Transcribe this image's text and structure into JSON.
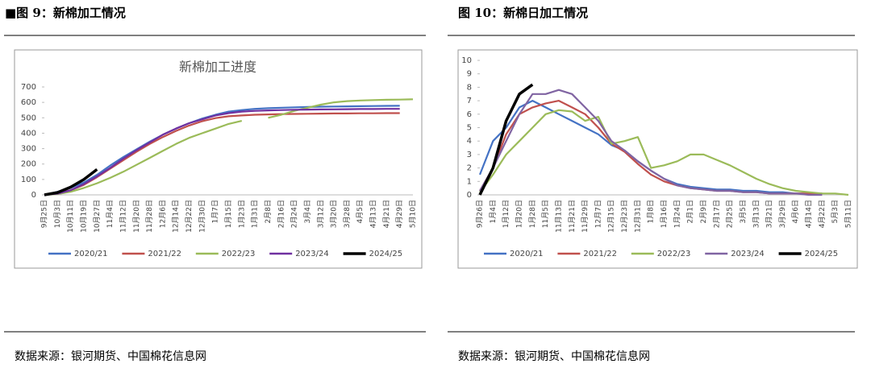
{
  "header_left": "■图 9：新棉加工情况",
  "header_right": "图 10：新棉日加工情况",
  "source_left": "数据来源：银河期货、中国棉花信息网",
  "source_right": "数据来源：银河期货、中国棉花信息网",
  "chart_data": [
    {
      "type": "line",
      "title": "新棉加工进度",
      "categories": [
        "9月25日",
        "10月3日",
        "10月11日",
        "10月19日",
        "10月27日",
        "11月4日",
        "11月12日",
        "11月20日",
        "11月28日",
        "12月6日",
        "12月14日",
        "12月22日",
        "12月30日",
        "1月7日",
        "1月15日",
        "1月23日",
        "1月31日",
        "2月8日",
        "2月16日",
        "2月24日",
        "3月4日",
        "3月12日",
        "3月20日",
        "3月28日",
        "4月5日",
        "4月13日",
        "4月21日",
        "4月29日",
        "5月10日"
      ],
      "ylim": [
        0,
        700
      ],
      "yticks": [
        0,
        100,
        200,
        300,
        400,
        500,
        600,
        700
      ],
      "series": [
        {
          "name": "2020/21",
          "color": "#4472c4",
          "values": [
            0,
            20,
            45,
            80,
            130,
            190,
            245,
            295,
            345,
            390,
            430,
            465,
            495,
            520,
            540,
            550,
            558,
            562,
            565,
            568,
            570,
            572,
            573,
            574,
            575,
            576,
            577,
            578,
            null
          ]
        },
        {
          "name": "2021/22",
          "color": "#c0504d",
          "values": [
            0,
            10,
            30,
            65,
            115,
            170,
            225,
            280,
            330,
            375,
            415,
            450,
            478,
            498,
            510,
            515,
            520,
            522,
            524,
            525,
            526,
            527,
            528,
            528,
            529,
            529,
            530,
            530,
            null
          ]
        },
        {
          "name": "2022/23",
          "color": "#9bbb59",
          "values": [
            0,
            5,
            20,
            45,
            75,
            110,
            150,
            195,
            240,
            285,
            330,
            370,
            400,
            430,
            460,
            480,
            null,
            500,
            520,
            545,
            565,
            585,
            600,
            608,
            612,
            615,
            617,
            618,
            620
          ]
        },
        {
          "name": "2023/24",
          "color": "#7030a0",
          "values": [
            0,
            8,
            30,
            70,
            120,
            175,
            235,
            290,
            340,
            390,
            430,
            465,
            490,
            515,
            530,
            540,
            545,
            548,
            550,
            552,
            553,
            554,
            555,
            556,
            557,
            557,
            558,
            558,
            null
          ]
        },
        {
          "name": "2024/25",
          "color": "#000000",
          "values": [
            0,
            15,
            50,
            100,
            165,
            null,
            null,
            null,
            null,
            null,
            null,
            null,
            null,
            null,
            null,
            null,
            null,
            null,
            null,
            null,
            null,
            null,
            null,
            null,
            null,
            null,
            null,
            null,
            null
          ]
        }
      ]
    },
    {
      "type": "line",
      "categories": [
        "9月26日",
        "1月4日",
        "1月12日",
        "1月20日",
        "1月28日",
        "11月5日",
        "11月13日",
        "11月21日",
        "11月29日",
        "12月7日",
        "12月15日",
        "12月23日",
        "12月31日",
        "1月8日",
        "1月16日",
        "1月24日",
        "2月1日",
        "2月9日",
        "2月17日",
        "2月25日",
        "3月5日",
        "3月13日",
        "3月21日",
        "3月29日",
        "4月6日",
        "4月14日",
        "4月22日",
        "5月3日",
        "5月11日"
      ],
      "ylim": [
        0,
        10
      ],
      "yticks": [
        0,
        1,
        2,
        3,
        4,
        5,
        6,
        7,
        8,
        9,
        10
      ],
      "series": [
        {
          "name": "2020/21",
          "color": "#4472c4",
          "values": [
            1.5,
            4,
            5,
            6.5,
            7,
            6.5,
            6,
            5.5,
            5,
            4.5,
            3.7,
            3.3,
            2.5,
            1.8,
            1.2,
            0.8,
            0.6,
            0.5,
            0.4,
            0.4,
            0.3,
            0.3,
            0.2,
            0.2,
            0.1,
            0.1,
            0.1,
            null,
            null
          ]
        },
        {
          "name": "2021/22",
          "color": "#c0504d",
          "values": [
            0.3,
            2,
            4.5,
            6,
            6.5,
            6.8,
            7,
            6.5,
            6,
            5,
            3.8,
            3.2,
            2.3,
            1.5,
            1,
            0.7,
            0.5,
            0.4,
            0.3,
            0.3,
            0.2,
            0.2,
            0.1,
            0.1,
            0.1,
            0.1,
            0.1,
            null,
            null
          ]
        },
        {
          "name": "2022/23",
          "color": "#9bbb59",
          "values": [
            0.2,
            1.5,
            3,
            4,
            5,
            6,
            6.3,
            6.2,
            5.5,
            5.8,
            3.8,
            4,
            4.3,
            2,
            2.2,
            2.5,
            3,
            3,
            2.6,
            2.2,
            1.7,
            1.2,
            0.8,
            0.5,
            0.3,
            0.2,
            0.1,
            0.1,
            0
          ]
        },
        {
          "name": "2023/24",
          "color": "#8064a2",
          "values": [
            0.3,
            2,
            4,
            6,
            7.5,
            7.5,
            7.8,
            7.5,
            6.5,
            5.5,
            4,
            3.3,
            2.5,
            1.8,
            1.2,
            0.7,
            0.5,
            0.4,
            0.3,
            0.3,
            0.2,
            0.2,
            0.1,
            0.1,
            0.1,
            0,
            0,
            null,
            null
          ]
        },
        {
          "name": "2024/25",
          "color": "#000000",
          "values": [
            0,
            2,
            5.5,
            7.5,
            8.2,
            null,
            null,
            null,
            null,
            null,
            null,
            null,
            null,
            null,
            null,
            null,
            null,
            null,
            null,
            null,
            null,
            null,
            null,
            null,
            null,
            null,
            null,
            null,
            null
          ]
        }
      ]
    }
  ]
}
